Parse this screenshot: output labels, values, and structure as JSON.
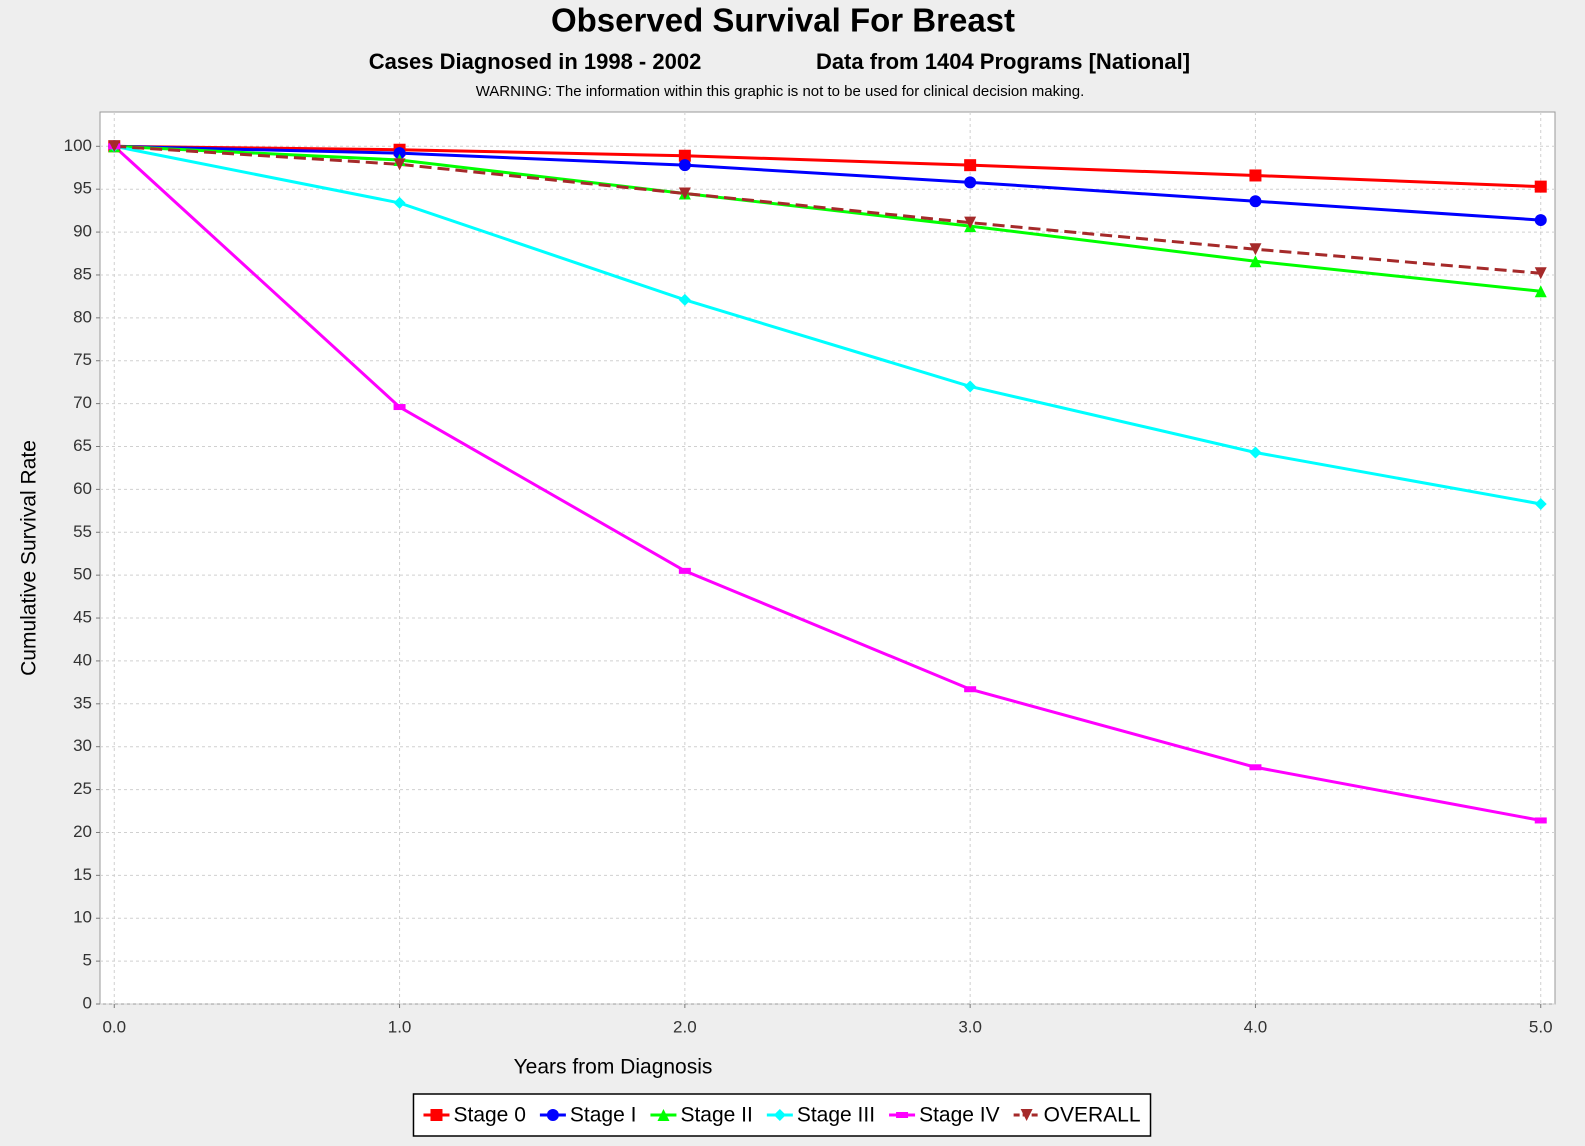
{
  "chart_data": {
    "type": "line",
    "title": "Observed Survival For Breast",
    "subtitle": "Cases Diagnosed in 1998 - 2002",
    "subtitle2": "Data from 1404 Programs [National]",
    "annotation": "WARNING: The information within this graphic is not to be used for clinical decision making.",
    "x_label": "Years from Diagnosis",
    "y_label": "Cumulative Survival Rate",
    "x": [
      0,
      1,
      2,
      3,
      4,
      5
    ],
    "xlim": [
      -0.05,
      5.05
    ],
    "ylim": [
      0,
      104
    ],
    "xticks": [
      {
        "value": 0,
        "label": "0.0"
      },
      {
        "value": 1,
        "label": "1.0"
      },
      {
        "value": 2,
        "label": "2.0"
      },
      {
        "value": 3,
        "label": "3.0"
      },
      {
        "value": 4,
        "label": "4.0"
      },
      {
        "value": 5,
        "label": "5.0"
      }
    ],
    "yticks": [
      0,
      5,
      10,
      15,
      20,
      25,
      30,
      35,
      40,
      45,
      50,
      55,
      60,
      65,
      70,
      75,
      80,
      85,
      90,
      95,
      100
    ],
    "grid": true,
    "legend": "bottom",
    "series": [
      {
        "name": "Stage 0",
        "color": "#ff0000",
        "marker": "square",
        "values": [
          100,
          99.6,
          98.9,
          97.8,
          96.6,
          95.3
        ]
      },
      {
        "name": "Stage I",
        "color": "#0000ff",
        "marker": "circle",
        "values": [
          100,
          99.2,
          97.8,
          95.8,
          93.6,
          91.4
        ]
      },
      {
        "name": "Stage II",
        "color": "#00ff00",
        "marker": "triangle-up",
        "values": [
          100,
          98.4,
          94.5,
          90.7,
          86.6,
          83.1
        ]
      },
      {
        "name": "Stage III",
        "color": "#00ffff",
        "marker": "diamond",
        "values": [
          100,
          93.4,
          82.1,
          72.0,
          64.3,
          58.3
        ]
      },
      {
        "name": "Stage IV",
        "color": "#ff00ff",
        "marker": "bar",
        "values": [
          100,
          69.6,
          50.5,
          36.7,
          27.6,
          21.4
        ]
      },
      {
        "name": "OVERALL",
        "color": "#a52a2a",
        "marker": "triangle-down",
        "dash": true,
        "values": [
          100,
          97.9,
          94.5,
          91.1,
          88.0,
          85.2
        ]
      }
    ]
  }
}
